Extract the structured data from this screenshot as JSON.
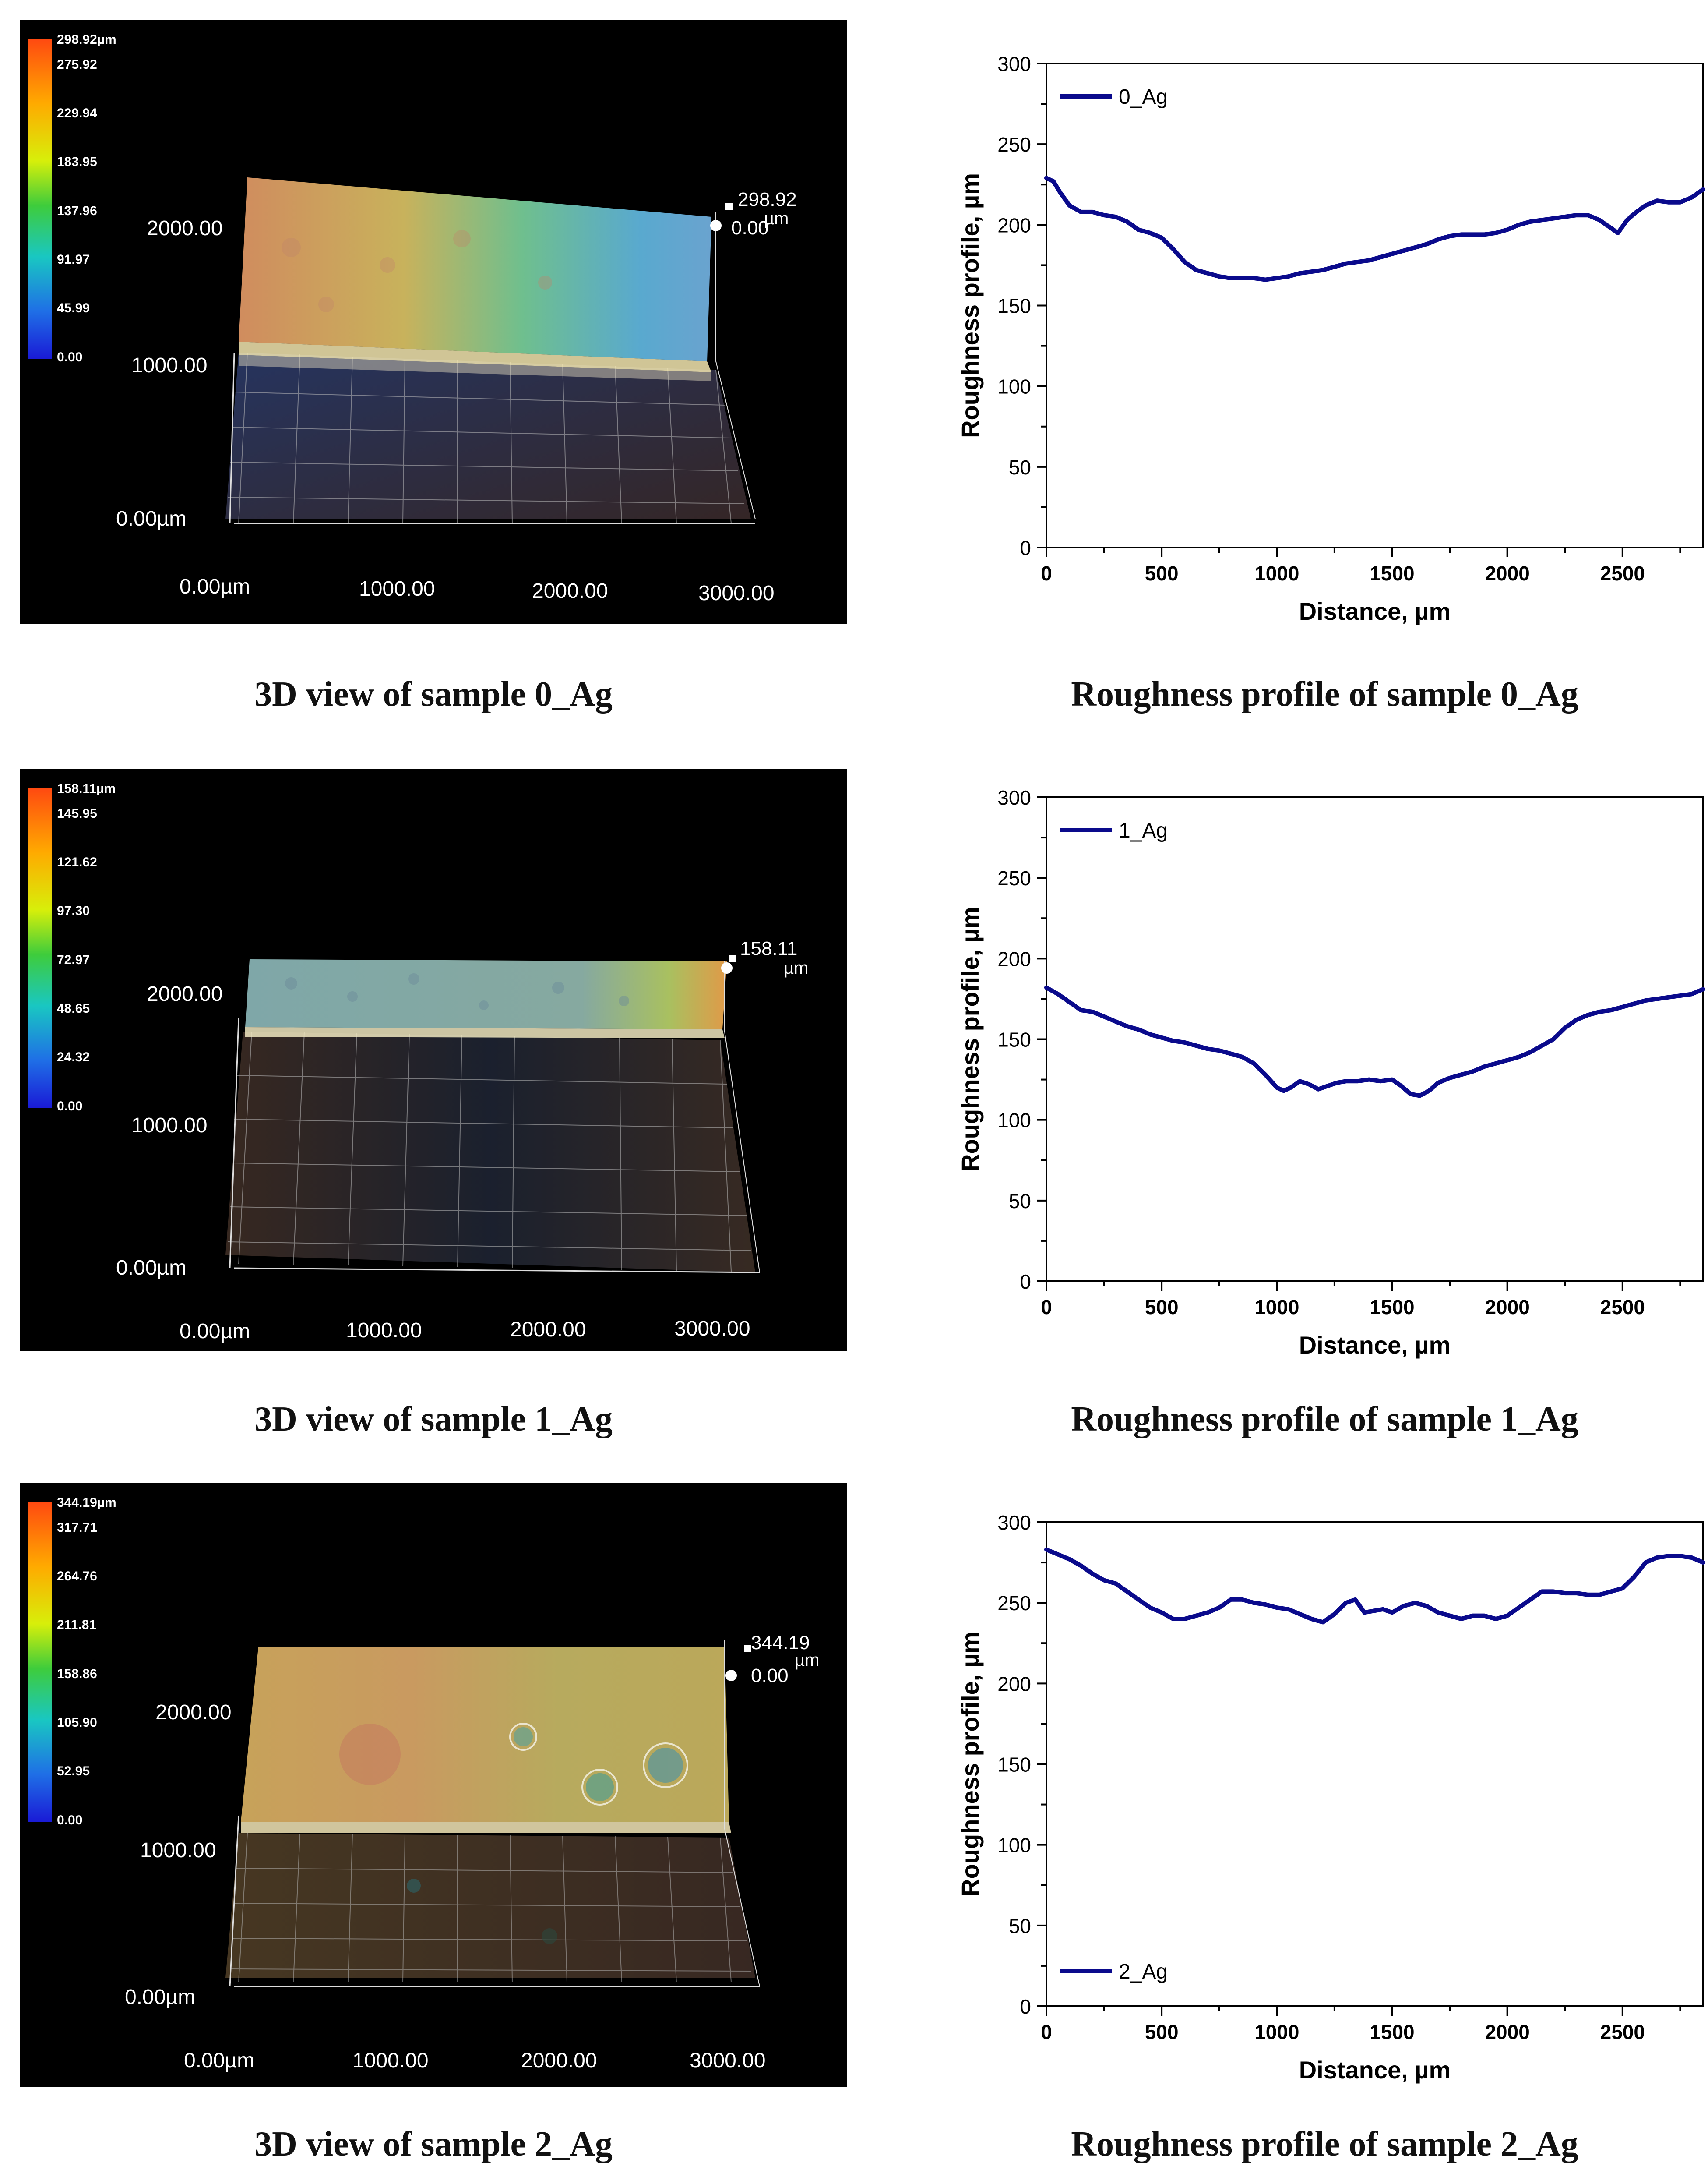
{
  "colors": {
    "series_line": "#0a0a8c",
    "axis": "#000000",
    "panel_bg": "#000000",
    "scale_text": "#ffffff"
  },
  "views3d": [
    {
      "caption": "3D view of sample 0_Ag",
      "scale_max": "298.92µm",
      "scale_ticks": [
        "275.92",
        "229.94",
        "183.95",
        "137.96",
        "91.97",
        "45.99",
        "0.00"
      ],
      "readout_top": "298.92",
      "readout_unit": "µm",
      "readout_bottom": "0.00",
      "y_ticks": [
        "2000.00",
        "1000.00",
        "0.00µm"
      ],
      "x_ticks": [
        "0.00µm",
        "1000.00",
        "2000.00",
        "3000.00"
      ]
    },
    {
      "caption": "3D view of sample 1_Ag",
      "scale_max": "158.11µm",
      "scale_ticks": [
        "145.95",
        "121.62",
        "97.30",
        "72.97",
        "48.65",
        "24.32",
        "0.00"
      ],
      "readout_top": "158.11",
      "readout_unit": "µm",
      "readout_bottom": "",
      "y_ticks": [
        "2000.00",
        "1000.00",
        "0.00µm"
      ],
      "x_ticks": [
        "0.00µm",
        "1000.00",
        "2000.00",
        "3000.00"
      ]
    },
    {
      "caption": "3D view of sample 2_Ag",
      "scale_max": "344.19µm",
      "scale_ticks": [
        "317.71",
        "264.76",
        "211.81",
        "158.86",
        "105.90",
        "52.95",
        "0.00"
      ],
      "readout_top": "344.19",
      "readout_unit": "µm",
      "readout_bottom": "0.00",
      "y_ticks": [
        "2000.00",
        "1000.00",
        "0.00µm"
      ],
      "x_ticks": [
        "0.00µm",
        "1000.00",
        "2000.00",
        "3000.00"
      ]
    }
  ],
  "chart_data": [
    {
      "type": "line",
      "caption": "Roughness profile of sample 0_Ag",
      "xlabel": "Distance, µm",
      "ylabel": "Roughness profile, µm",
      "xlim": [
        0,
        2850
      ],
      "ylim": [
        0,
        300
      ],
      "xticks": [
        0,
        500,
        1000,
        1500,
        2000,
        2500
      ],
      "yticks": [
        0,
        50,
        100,
        150,
        200,
        250,
        300
      ],
      "legend_position": "top-left",
      "series": [
        {
          "name": "0_Ag",
          "x": [
            0,
            30,
            60,
            100,
            150,
            200,
            250,
            300,
            350,
            400,
            450,
            500,
            550,
            600,
            650,
            700,
            750,
            800,
            850,
            900,
            950,
            1000,
            1050,
            1100,
            1150,
            1200,
            1250,
            1300,
            1350,
            1400,
            1450,
            1500,
            1550,
            1600,
            1650,
            1700,
            1750,
            1800,
            1850,
            1900,
            1950,
            2000,
            2050,
            2100,
            2150,
            2200,
            2250,
            2300,
            2350,
            2400,
            2450,
            2480,
            2520,
            2560,
            2600,
            2650,
            2700,
            2750,
            2800,
            2850
          ],
          "y": [
            229,
            227,
            220,
            212,
            208,
            208,
            206,
            205,
            202,
            197,
            195,
            192,
            185,
            177,
            172,
            170,
            168,
            167,
            167,
            167,
            166,
            167,
            168,
            170,
            171,
            172,
            174,
            176,
            177,
            178,
            180,
            182,
            184,
            186,
            188,
            191,
            193,
            194,
            194,
            194,
            195,
            197,
            200,
            202,
            203,
            204,
            205,
            206,
            206,
            203,
            198,
            195,
            203,
            208,
            212,
            215,
            214,
            214,
            217,
            222
          ]
        }
      ]
    },
    {
      "type": "line",
      "caption": "Roughness profile of sample 1_Ag",
      "xlabel": "Distance, µm",
      "ylabel": "Roughness profile, µm",
      "xlim": [
        0,
        2850
      ],
      "ylim": [
        0,
        300
      ],
      "xticks": [
        0,
        500,
        1000,
        1500,
        2000,
        2500
      ],
      "yticks": [
        0,
        50,
        100,
        150,
        200,
        250,
        300
      ],
      "legend_position": "top-left",
      "series": [
        {
          "name": "1_Ag",
          "x": [
            0,
            50,
            100,
            150,
            200,
            250,
            300,
            350,
            400,
            450,
            500,
            550,
            600,
            650,
            700,
            750,
            800,
            850,
            900,
            950,
            1000,
            1030,
            1060,
            1100,
            1140,
            1180,
            1220,
            1260,
            1300,
            1350,
            1400,
            1450,
            1500,
            1540,
            1580,
            1620,
            1660,
            1700,
            1750,
            1800,
            1850,
            1900,
            1950,
            2000,
            2050,
            2100,
            2150,
            2200,
            2250,
            2300,
            2350,
            2400,
            2450,
            2500,
            2550,
            2600,
            2650,
            2700,
            2750,
            2800,
            2850
          ],
          "y": [
            182,
            178,
            173,
            168,
            167,
            164,
            161,
            158,
            156,
            153,
            151,
            149,
            148,
            146,
            144,
            143,
            141,
            139,
            135,
            128,
            120,
            118,
            120,
            124,
            122,
            119,
            121,
            123,
            124,
            124,
            125,
            124,
            125,
            121,
            116,
            115,
            118,
            123,
            126,
            128,
            130,
            133,
            135,
            137,
            139,
            142,
            146,
            150,
            157,
            162,
            165,
            167,
            168,
            170,
            172,
            174,
            175,
            176,
            177,
            178,
            181
          ]
        }
      ]
    },
    {
      "type": "line",
      "caption": "Roughness profile of sample 2_Ag",
      "xlabel": "Distance, µm",
      "ylabel": "Roughness profile, µm",
      "xlim": [
        0,
        2850
      ],
      "ylim": [
        0,
        300
      ],
      "xticks": [
        0,
        500,
        1000,
        1500,
        2000,
        2500
      ],
      "yticks": [
        0,
        50,
        100,
        150,
        200,
        250,
        300
      ],
      "legend_position": "bottom-left",
      "series": [
        {
          "name": "2_Ag",
          "x": [
            0,
            50,
            100,
            150,
            200,
            250,
            300,
            350,
            400,
            450,
            500,
            550,
            600,
            650,
            700,
            750,
            800,
            850,
            900,
            950,
            1000,
            1050,
            1100,
            1150,
            1200,
            1250,
            1300,
            1340,
            1380,
            1420,
            1460,
            1500,
            1550,
            1600,
            1650,
            1700,
            1750,
            1800,
            1850,
            1900,
            1950,
            2000,
            2050,
            2100,
            2150,
            2200,
            2250,
            2300,
            2350,
            2400,
            2450,
            2500,
            2550,
            2600,
            2650,
            2700,
            2750,
            2800,
            2850
          ],
          "y": [
            283,
            280,
            277,
            273,
            268,
            264,
            262,
            257,
            252,
            247,
            244,
            240,
            240,
            242,
            244,
            247,
            252,
            252,
            250,
            249,
            247,
            246,
            243,
            240,
            238,
            243,
            250,
            252,
            244,
            245,
            246,
            244,
            248,
            250,
            248,
            244,
            242,
            240,
            242,
            242,
            240,
            242,
            247,
            252,
            257,
            257,
            256,
            256,
            255,
            255,
            257,
            259,
            266,
            275,
            278,
            279,
            279,
            278,
            275
          ]
        }
      ]
    }
  ]
}
